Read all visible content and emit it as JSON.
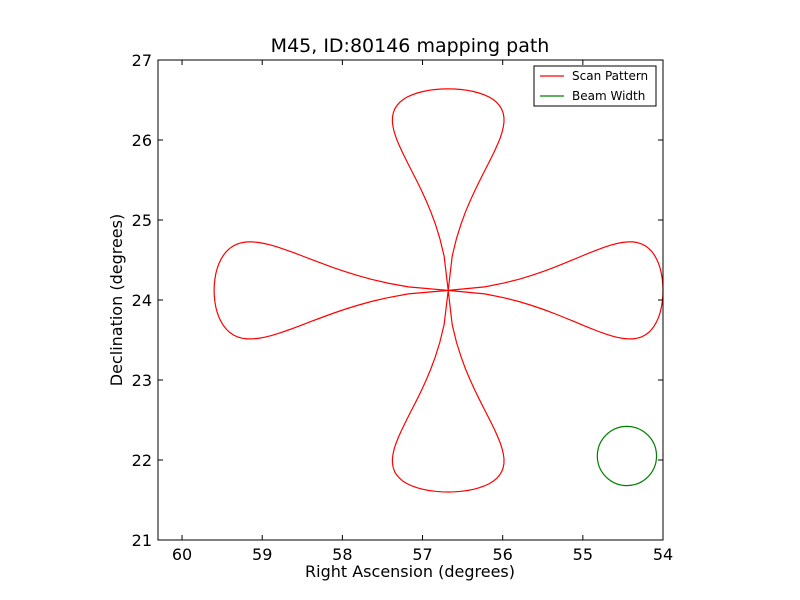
{
  "chart_data": {
    "type": "line",
    "title": "M45, ID:80146 mapping path",
    "xlabel": "Right Ascension (degrees)",
    "ylabel": "Declination (degrees)",
    "xlim": [
      60.3,
      54.0
    ],
    "ylim": [
      21,
      27
    ],
    "x_inverted": true,
    "xticks": [
      60,
      59,
      58,
      57,
      56,
      55,
      54
    ],
    "yticks": [
      21,
      22,
      23,
      24,
      25,
      26,
      27
    ],
    "grid": false,
    "legend_position": "top-right",
    "series": [
      {
        "name": "Scan Pattern",
        "color": "#ff0000",
        "kind": "scan-rose",
        "center": [
          56.68,
          24.12
        ],
        "lobes": [
          {
            "direction_deg": 0,
            "length_ra": 2.68
          },
          {
            "direction_deg": 90,
            "length_dec": 2.52
          },
          {
            "direction_deg": 180,
            "length_ra": 2.92
          },
          {
            "direction_deg": 270,
            "length_dec": 2.52
          }
        ],
        "lobe_half_width_ra": 0.78,
        "lobe_half_width_dec": 0.68
      },
      {
        "name": "Beam Width",
        "color": "#008000",
        "kind": "circle",
        "center": [
          54.45,
          22.05
        ],
        "radius_dec": 0.37
      }
    ]
  }
}
